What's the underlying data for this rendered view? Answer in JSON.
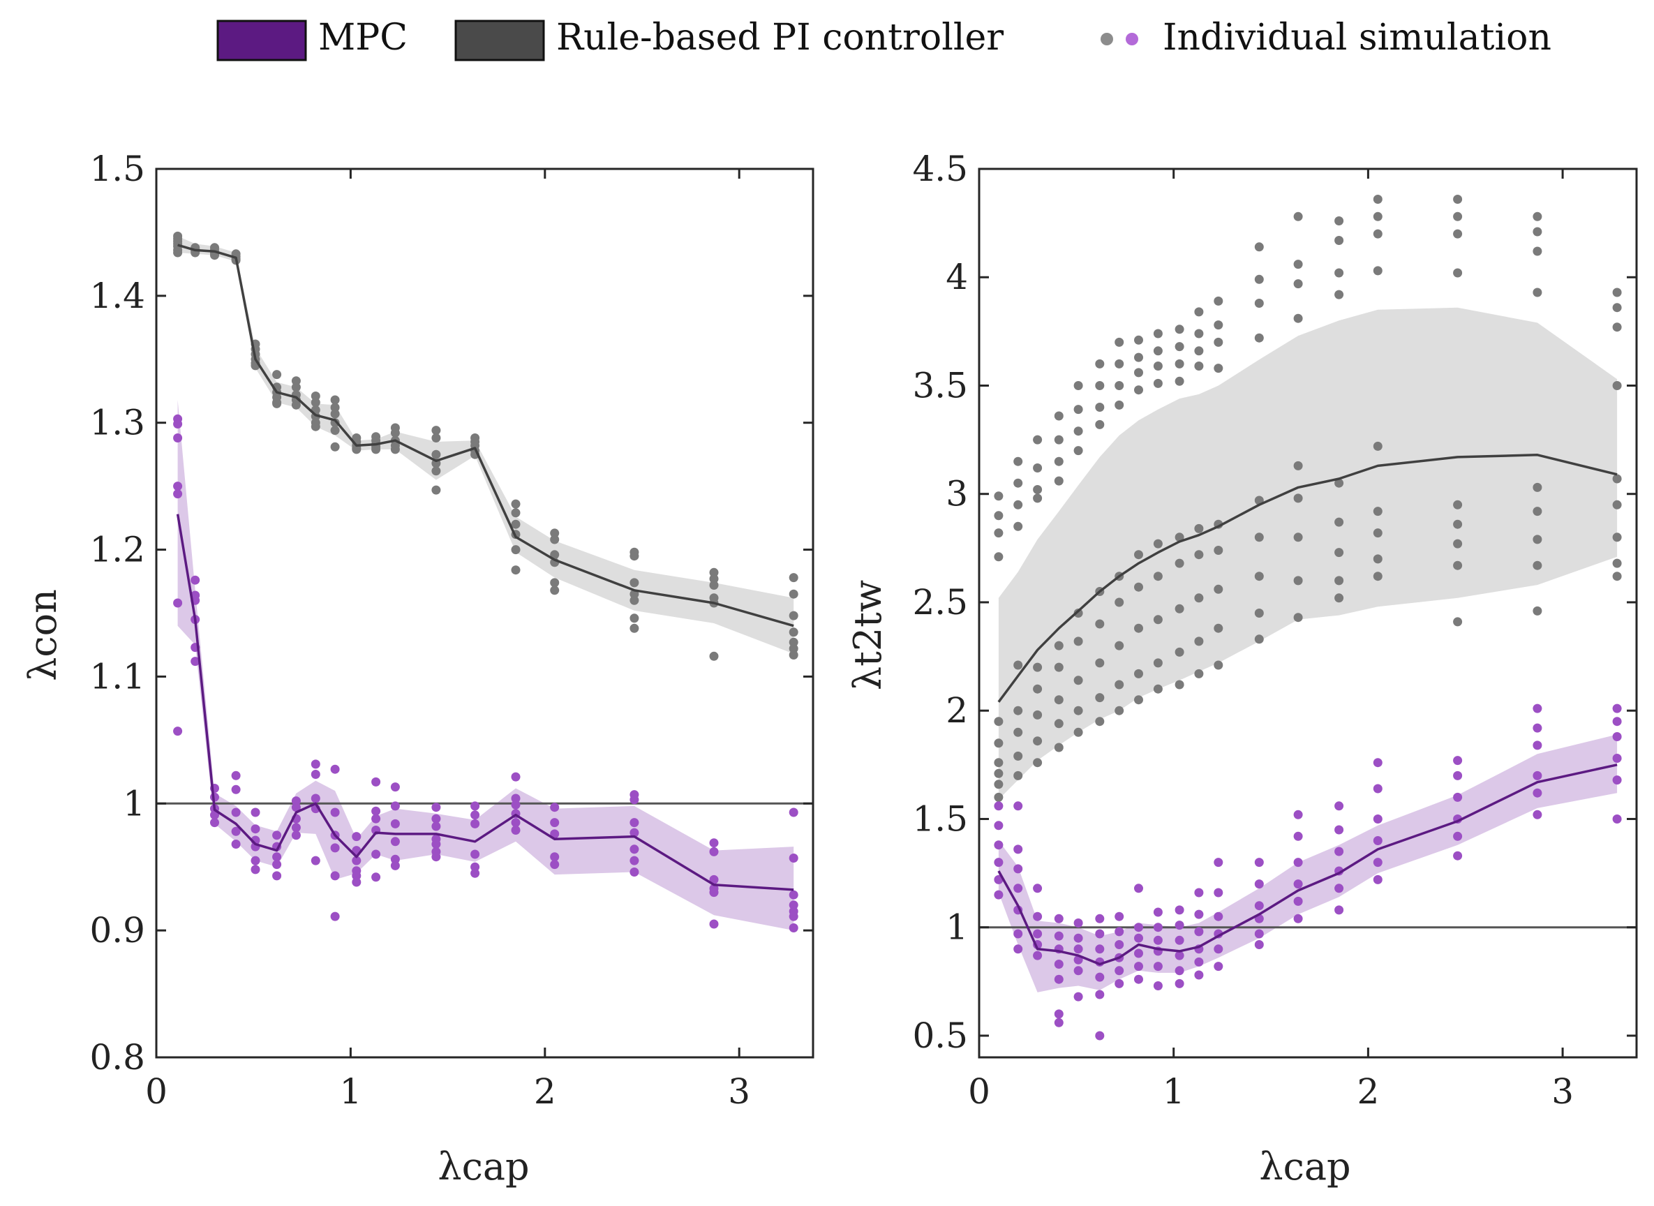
{
  "legend": {
    "items": [
      {
        "label": "MPC",
        "color": "#5c1a82"
      },
      {
        "label": "Rule-based PI controller",
        "color": "#4a4a4a"
      },
      {
        "label": "Individual simulation",
        "dot_colors": [
          "#8c8c8c",
          "#b36ad8"
        ]
      }
    ]
  },
  "colors": {
    "mpc_line": "#5c1a82",
    "mpc_band": "#dcc8e8",
    "mpc_dots": "#9c4fc4",
    "pi_line": "#404040",
    "pi_band": "#dedede",
    "pi_dots": "#7a7a7a",
    "ref_line": "#555555"
  },
  "chart_data": [
    {
      "type": "line",
      "xlabel": "λcap",
      "ylabel": "λcon",
      "xlim": [
        0,
        3.38
      ],
      "ylim": [
        0.8,
        1.5
      ],
      "xticks": [
        0,
        1,
        2,
        3
      ],
      "yticks": [
        0.8,
        0.9,
        1,
        1.1,
        1.2,
        1.3,
        1.4,
        1.5
      ],
      "ytick_labels": [
        "0.8",
        "0.9",
        "1",
        "1.1",
        "1.2",
        "1.3",
        "1.4",
        "1.5"
      ],
      "reference_line": 1.0,
      "x": [
        0.11,
        0.2,
        0.3,
        0.41,
        0.51,
        0.62,
        0.72,
        0.82,
        0.92,
        1.03,
        1.13,
        1.23,
        1.44,
        1.64,
        1.85,
        2.05,
        2.46,
        2.87,
        3.28
      ],
      "series": [
        {
          "name": "Rule-based PI controller",
          "mean": [
            1.44,
            1.436,
            1.435,
            1.43,
            1.35,
            1.324,
            1.32,
            1.306,
            1.302,
            1.282,
            1.283,
            1.286,
            1.27,
            1.28,
            1.21,
            1.192,
            1.168,
            1.158,
            1.14
          ],
          "lower": [
            1.434,
            1.433,
            1.432,
            1.427,
            1.343,
            1.316,
            1.312,
            1.297,
            1.29,
            1.278,
            1.279,
            1.279,
            1.255,
            1.274,
            1.198,
            1.178,
            1.152,
            1.142,
            1.118
          ],
          "upper": [
            1.447,
            1.441,
            1.439,
            1.434,
            1.359,
            1.332,
            1.328,
            1.315,
            1.314,
            1.286,
            1.287,
            1.293,
            1.285,
            1.286,
            1.226,
            1.207,
            1.184,
            1.174,
            1.162
          ],
          "samples": [
            [
              1.447,
              1.445,
              1.443,
              1.441,
              1.439,
              1.436,
              1.434
            ],
            [
              1.438,
              1.437,
              1.436,
              1.435,
              1.434
            ],
            [
              1.438,
              1.436,
              1.434,
              1.433,
              1.432
            ],
            [
              1.433,
              1.431,
              1.429,
              1.428
            ],
            [
              1.362,
              1.358,
              1.354,
              1.35,
              1.347,
              1.345
            ],
            [
              1.338,
              1.328,
              1.324,
              1.32,
              1.316,
              1.315
            ],
            [
              1.333,
              1.328,
              1.322,
              1.318,
              1.314
            ],
            [
              1.321,
              1.316,
              1.31,
              1.305,
              1.3,
              1.297
            ],
            [
              1.318,
              1.312,
              1.307,
              1.3,
              1.294,
              1.281
            ],
            [
              1.288,
              1.285,
              1.282,
              1.28,
              1.279
            ],
            [
              1.289,
              1.286,
              1.283,
              1.281,
              1.279
            ],
            [
              1.296,
              1.292,
              1.286,
              1.282,
              1.279
            ],
            [
              1.294,
              1.288,
              1.275,
              1.268,
              1.262,
              1.247
            ],
            [
              1.288,
              1.285,
              1.282,
              1.278,
              1.275
            ],
            [
              1.236,
              1.229,
              1.22,
              1.212,
              1.2,
              1.184
            ],
            [
              1.213,
              1.208,
              1.196,
              1.19,
              1.174,
              1.168
            ],
            [
              1.198,
              1.195,
              1.174,
              1.165,
              1.16,
              1.146,
              1.138
            ],
            [
              1.182,
              1.177,
              1.172,
              1.162,
              1.158,
              1.116
            ],
            [
              1.178,
              1.165,
              1.148,
              1.135,
              1.127,
              1.122,
              1.117
            ]
          ]
        },
        {
          "name": "MPC",
          "mean": [
            1.228,
            1.145,
            0.995,
            0.984,
            0.968,
            0.963,
            0.993,
            1.0,
            0.975,
            0.958,
            0.977,
            0.976,
            0.976,
            0.97,
            0.991,
            0.972,
            0.974,
            0.936,
            0.932
          ],
          "lower": [
            1.14,
            1.125,
            0.984,
            0.97,
            0.955,
            0.95,
            0.977,
            0.976,
            0.94,
            0.945,
            0.96,
            0.955,
            0.96,
            0.954,
            0.97,
            0.944,
            0.946,
            0.912,
            0.9
          ],
          "upper": [
            1.318,
            1.168,
            1.008,
            0.998,
            0.983,
            0.978,
            1.008,
            1.018,
            1.01,
            0.972,
            0.99,
            0.996,
            0.992,
            0.987,
            1.012,
            0.996,
            0.998,
            0.963,
            0.966
          ],
          "samples": [
            [
              1.303,
              1.299,
              1.288,
              1.25,
              1.244,
              1.158,
              1.057
            ],
            [
              1.176,
              1.164,
              1.16,
              1.145,
              1.123,
              1.112
            ],
            [
              1.012,
              1.005,
              0.996,
              0.991,
              0.985
            ],
            [
              1.022,
              1.011,
              0.993,
              0.978,
              0.968
            ],
            [
              0.993,
              0.98,
              0.971,
              0.966,
              0.955,
              0.948
            ],
            [
              0.975,
              0.966,
              0.958,
              0.952,
              0.943
            ],
            [
              1.002,
              0.997,
              0.988,
              0.981,
              0.975
            ],
            [
              1.031,
              1.023,
              1.004,
              0.996,
              0.955
            ],
            [
              1.027,
              0.993,
              0.975,
              0.965,
              0.943,
              0.911
            ],
            [
              0.974,
              0.963,
              0.955,
              0.947,
              0.943,
              0.938
            ],
            [
              1.017,
              0.994,
              0.988,
              0.979,
              0.96,
              0.942
            ],
            [
              1.013,
              0.998,
              0.984,
              0.97,
              0.956,
              0.951
            ],
            [
              0.997,
              0.988,
              0.982,
              0.972,
              0.968,
              0.962,
              0.958
            ],
            [
              0.998,
              0.991,
              0.984,
              0.96,
              0.95,
              0.945
            ],
            [
              1.021,
              1.004,
              0.999,
              0.992,
              0.985,
              0.979
            ],
            [
              0.997,
              0.985,
              0.976,
              0.958,
              0.952
            ],
            [
              1.007,
              1.003,
              0.985,
              0.977,
              0.964,
              0.955,
              0.946
            ],
            [
              0.969,
              0.962,
              0.94,
              0.933,
              0.93,
              0.905
            ],
            [
              0.993,
              0.957,
              0.928,
              0.92,
              0.915,
              0.911,
              0.902
            ]
          ]
        }
      ]
    },
    {
      "type": "line",
      "xlabel": "λcap",
      "ylabel": "λt2tw",
      "xlim": [
        0,
        3.38
      ],
      "ylim": [
        0.4,
        4.5
      ],
      "xticks": [
        0,
        1,
        2,
        3
      ],
      "yticks": [
        0.5,
        1,
        1.5,
        2,
        2.5,
        3,
        3.5,
        4,
        4.5
      ],
      "ytick_labels": [
        "0.5",
        "1",
        "1.5",
        "2",
        "2.5",
        "3",
        "3.5",
        "4",
        "4.5"
      ],
      "reference_line": 1.0,
      "x": [
        0.1,
        0.2,
        0.3,
        0.41,
        0.51,
        0.62,
        0.72,
        0.82,
        0.92,
        1.03,
        1.13,
        1.23,
        1.44,
        1.64,
        1.85,
        2.05,
        2.46,
        2.87,
        3.28
      ],
      "series": [
        {
          "name": "Rule-based PI controller",
          "mean": [
            2.04,
            2.16,
            2.28,
            2.38,
            2.46,
            2.55,
            2.62,
            2.68,
            2.73,
            2.78,
            2.81,
            2.85,
            2.95,
            3.03,
            3.07,
            3.13,
            3.17,
            3.18,
            3.09
          ],
          "lower": [
            1.59,
            1.68,
            1.77,
            1.84,
            1.9,
            1.96,
            2.0,
            2.06,
            2.1,
            2.14,
            2.18,
            2.22,
            2.32,
            2.42,
            2.44,
            2.48,
            2.52,
            2.58,
            2.71
          ],
          "upper": [
            2.52,
            2.64,
            2.79,
            2.92,
            3.04,
            3.17,
            3.27,
            3.34,
            3.39,
            3.44,
            3.46,
            3.5,
            3.62,
            3.73,
            3.8,
            3.85,
            3.86,
            3.79,
            3.53
          ],
          "samples": [
            [
              2.99,
              2.9,
              2.82,
              2.71,
              1.95,
              1.85,
              1.76,
              1.71,
              1.66,
              1.6
            ],
            [
              3.15,
              3.05,
              2.95,
              2.85,
              2.21,
              2.0,
              1.9,
              1.79,
              1.7
            ],
            [
              3.25,
              3.12,
              3.02,
              2.98,
              2.2,
              2.1,
              1.98,
              1.86,
              1.76
            ],
            [
              3.36,
              3.25,
              3.15,
              3.06,
              2.3,
              2.2,
              2.05,
              1.94,
              1.83
            ],
            [
              3.5,
              3.39,
              3.29,
              3.2,
              2.45,
              2.32,
              2.14,
              2.0,
              1.9
            ],
            [
              3.6,
              3.5,
              3.4,
              3.32,
              2.55,
              2.4,
              2.22,
              2.06,
              1.95
            ],
            [
              3.7,
              3.6,
              3.5,
              3.41,
              2.62,
              2.5,
              2.3,
              2.12,
              2.0
            ],
            [
              3.71,
              3.63,
              3.56,
              3.48,
              2.72,
              2.57,
              2.38,
              2.17,
              2.05
            ],
            [
              3.74,
              3.66,
              3.59,
              3.51,
              2.77,
              2.62,
              2.42,
              2.22,
              2.1
            ],
            [
              3.76,
              3.68,
              3.6,
              3.52,
              2.8,
              2.68,
              2.47,
              2.27,
              2.12
            ],
            [
              3.84,
              3.74,
              3.66,
              3.59,
              2.84,
              2.72,
              2.52,
              2.32,
              2.17
            ],
            [
              3.89,
              3.78,
              3.7,
              3.58,
              2.86,
              2.74,
              2.56,
              2.38,
              2.21
            ],
            [
              4.14,
              3.99,
              3.88,
              3.72,
              2.97,
              2.8,
              2.62,
              2.45,
              2.33
            ],
            [
              4.28,
              4.06,
              3.97,
              3.81,
              3.13,
              2.98,
              2.8,
              2.6,
              2.43
            ],
            [
              4.26,
              4.17,
              4.02,
              3.92,
              3.05,
              2.87,
              2.73,
              2.6,
              2.52
            ],
            [
              4.36,
              4.28,
              4.2,
              4.03,
              3.22,
              2.92,
              2.82,
              2.7,
              2.62
            ],
            [
              4.36,
              4.28,
              4.2,
              4.02,
              2.95,
              2.86,
              2.77,
              2.67,
              2.41
            ],
            [
              4.28,
              4.21,
              4.12,
              3.93,
              3.03,
              2.92,
              2.79,
              2.67,
              2.46
            ],
            [
              3.93,
              3.86,
              3.77,
              3.5,
              3.07,
              2.95,
              2.8,
              2.68,
              2.62
            ]
          ]
        },
        {
          "name": "MPC",
          "mean": [
            1.26,
            1.1,
            0.9,
            0.89,
            0.87,
            0.83,
            0.86,
            0.92,
            0.9,
            0.89,
            0.91,
            0.96,
            1.06,
            1.17,
            1.25,
            1.36,
            1.49,
            1.67,
            1.75
          ],
          "lower": [
            1.16,
            0.92,
            0.7,
            0.72,
            0.73,
            0.71,
            0.76,
            0.8,
            0.79,
            0.79,
            0.82,
            0.86,
            0.95,
            1.06,
            1.14,
            1.25,
            1.38,
            1.55,
            1.62
          ],
          "upper": [
            1.4,
            1.28,
            1.03,
            1.02,
            1.0,
            0.96,
            0.98,
            1.02,
            1.01,
            1.0,
            1.02,
            1.07,
            1.18,
            1.3,
            1.38,
            1.47,
            1.61,
            1.8,
            1.89
          ],
          "samples": [
            [
              1.56,
              1.47,
              1.38,
              1.3,
              1.22,
              1.15
            ],
            [
              1.56,
              1.36,
              1.27,
              1.18,
              1.08,
              0.97,
              0.9
            ],
            [
              1.18,
              1.05,
              0.97,
              0.92,
              0.87
            ],
            [
              1.04,
              0.96,
              0.9,
              0.83,
              0.76,
              0.6,
              0.56
            ],
            [
              1.02,
              0.95,
              0.9,
              0.85,
              0.8,
              0.68
            ],
            [
              1.04,
              0.97,
              0.9,
              0.84,
              0.77,
              0.69,
              0.5
            ],
            [
              1.05,
              0.98,
              0.92,
              0.86,
              0.8,
              0.74
            ],
            [
              1.18,
              1.0,
              0.95,
              0.88,
              0.82,
              0.76
            ],
            [
              1.07,
              1.0,
              0.94,
              0.89,
              0.82,
              0.73
            ],
            [
              1.08,
              1.01,
              0.94,
              0.87,
              0.8,
              0.74
            ],
            [
              1.16,
              1.06,
              0.98,
              0.9,
              0.84,
              0.78
            ],
            [
              1.3,
              1.16,
              1.05,
              0.97,
              0.9,
              0.82
            ],
            [
              1.3,
              1.2,
              1.1,
              1.04,
              0.97,
              0.92
            ],
            [
              1.52,
              1.42,
              1.3,
              1.2,
              1.12,
              1.04
            ],
            [
              1.56,
              1.45,
              1.35,
              1.26,
              1.18,
              1.08
            ],
            [
              1.76,
              1.64,
              1.5,
              1.4,
              1.3,
              1.22
            ],
            [
              1.77,
              1.7,
              1.6,
              1.5,
              1.42,
              1.33
            ],
            [
              2.01,
              1.92,
              1.84,
              1.7,
              1.62,
              1.52
            ],
            [
              2.01,
              1.95,
              1.88,
              1.78,
              1.68,
              1.5
            ]
          ]
        }
      ]
    }
  ]
}
